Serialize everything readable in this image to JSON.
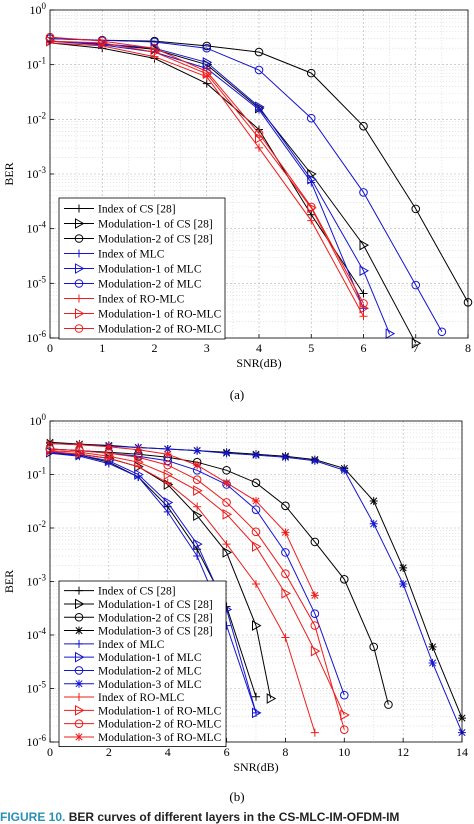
{
  "caption": {
    "prefix": "FIGURE 10.",
    "text": "BER curves of different layers in the CS-MLC-IM-OFDM-IM"
  },
  "chart_data": [
    {
      "type": "line",
      "panel_label": "(a)",
      "xlabel": "SNR(dB)",
      "ylabel": "BER",
      "xlim": [
        0,
        8
      ],
      "ylim": [
        1e-06,
        1
      ],
      "yscale": "log",
      "grid": true,
      "legend_position": "bottom-left",
      "x_ticks": [
        "0",
        "1",
        "2",
        "3",
        "4",
        "5",
        "6",
        "7",
        "8"
      ],
      "y_ticks": [
        {
          "base": "10",
          "exp": "0"
        },
        {
          "base": "10",
          "exp": "-1"
        },
        {
          "base": "10",
          "exp": "-2"
        },
        {
          "base": "10",
          "exp": "-3"
        },
        {
          "base": "10",
          "exp": "-4"
        },
        {
          "base": "10",
          "exp": "-5"
        },
        {
          "base": "10",
          "exp": "-6"
        }
      ],
      "series": [
        {
          "name": "Index of CS [28]",
          "color": "#000000",
          "marker": "plus",
          "x": [
            0,
            1,
            2,
            3,
            4,
            5,
            6
          ],
          "y": [
            0.25,
            0.2,
            0.13,
            0.045,
            0.0065,
            0.00018,
            6.5e-06
          ]
        },
        {
          "name": "Modulation-1 of CS [28]",
          "color": "#000000",
          "marker": "triangle-right",
          "x": [
            0,
            1,
            2,
            3,
            4,
            5,
            6,
            7
          ],
          "y": [
            0.27,
            0.24,
            0.19,
            0.1,
            0.016,
            0.001,
            5e-05,
            8e-07
          ]
        },
        {
          "name": "Modulation-2 of CS [28]",
          "color": "#000000",
          "marker": "circle",
          "x": [
            0,
            1,
            2,
            3,
            4,
            5,
            6,
            7,
            8
          ],
          "y": [
            0.3,
            0.28,
            0.27,
            0.22,
            0.17,
            0.07,
            0.0075,
            0.00023,
            4.5e-06
          ]
        },
        {
          "name": "Index of MLC",
          "color": "#1414d2",
          "marker": "plus",
          "x": [
            0,
            1,
            2,
            3,
            4,
            5,
            6
          ],
          "y": [
            0.27,
            0.23,
            0.17,
            0.085,
            0.015,
            0.0007,
            3.5e-06
          ]
        },
        {
          "name": "Modulation-1 of MLC",
          "color": "#1414d2",
          "marker": "triangle-right",
          "x": [
            0,
            1,
            2,
            3,
            4,
            5,
            6,
            6.5
          ],
          "y": [
            0.27,
            0.24,
            0.2,
            0.11,
            0.017,
            0.0008,
            1.7e-05,
            1.2e-06
          ]
        },
        {
          "name": "Modulation-2 of MLC",
          "color": "#1414d2",
          "marker": "circle",
          "x": [
            0,
            1,
            2,
            3,
            4,
            5,
            6,
            7,
            7.5
          ],
          "y": [
            0.3,
            0.28,
            0.26,
            0.2,
            0.08,
            0.0105,
            0.00046,
            9.3e-06,
            1.3e-06
          ]
        },
        {
          "name": "Index of RO-MLC",
          "color": "#ee1c1c",
          "marker": "plus",
          "x": [
            0,
            1,
            2,
            3,
            4,
            5,
            6
          ],
          "y": [
            0.25,
            0.22,
            0.14,
            0.06,
            0.003,
            0.00014,
            2.5e-06
          ]
        },
        {
          "name": "Modulation-1 of RO-MLC",
          "color": "#ee1c1c",
          "marker": "triangle-right",
          "x": [
            0,
            1,
            2,
            3,
            4,
            5,
            6
          ],
          "y": [
            0.27,
            0.25,
            0.17,
            0.068,
            0.0045,
            0.00024,
            3.5e-06
          ]
        },
        {
          "name": "Modulation-2 of RO-MLC",
          "color": "#ee1c1c",
          "marker": "circle",
          "x": [
            0,
            1,
            2,
            3,
            4,
            5,
            6
          ],
          "y": [
            0.32,
            0.27,
            0.2,
            0.075,
            0.0055,
            0.00025,
            4.3e-06
          ]
        }
      ]
    },
    {
      "type": "line",
      "panel_label": "(b)",
      "xlabel": "SNR(dB)",
      "ylabel": "BER",
      "xlim": [
        0,
        14
      ],
      "ylim": [
        1e-06,
        1
      ],
      "yscale": "log",
      "grid": true,
      "legend_position": "bottom-left",
      "x_ticks": [
        "0",
        "2",
        "4",
        "6",
        "8",
        "10",
        "12",
        "14"
      ],
      "y_ticks": [
        {
          "base": "10",
          "exp": "0"
        },
        {
          "base": "10",
          "exp": "-1"
        },
        {
          "base": "10",
          "exp": "-2"
        },
        {
          "base": "10",
          "exp": "-3"
        },
        {
          "base": "10",
          "exp": "-4"
        },
        {
          "base": "10",
          "exp": "-5"
        },
        {
          "base": "10",
          "exp": "-6"
        }
      ],
      "series": [
        {
          "name": "Index of CS [28]",
          "color": "#000000",
          "marker": "plus",
          "x": [
            0,
            1,
            2,
            3,
            4,
            5,
            6,
            7
          ],
          "y": [
            0.25,
            0.23,
            0.17,
            0.09,
            0.025,
            0.004,
            0.00034,
            7e-06
          ]
        },
        {
          "name": "Modulation-1 of CS [28]",
          "color": "#000000",
          "marker": "triangle-right",
          "x": [
            0,
            1,
            2,
            3,
            4,
            5,
            6,
            7,
            7.5
          ],
          "y": [
            0.26,
            0.24,
            0.2,
            0.14,
            0.065,
            0.017,
            0.0035,
            0.00015,
            6.5e-06
          ]
        },
        {
          "name": "Modulation-2 of CS [28]",
          "color": "#000000",
          "marker": "circle",
          "x": [
            0,
            1,
            2,
            3,
            4,
            5,
            6,
            7,
            8,
            9,
            10,
            11,
            11.5
          ],
          "y": [
            0.3,
            0.28,
            0.26,
            0.24,
            0.21,
            0.17,
            0.12,
            0.07,
            0.026,
            0.0055,
            0.0011,
            6e-05,
            5e-06
          ]
        },
        {
          "name": "Modulation-3 of CS [28]",
          "color": "#000000",
          "marker": "star",
          "x": [
            0,
            1,
            2,
            3,
            4,
            5,
            6,
            7,
            8,
            9,
            10,
            11,
            12,
            13,
            14
          ],
          "y": [
            0.4,
            0.37,
            0.35,
            0.32,
            0.3,
            0.28,
            0.26,
            0.24,
            0.22,
            0.19,
            0.13,
            0.032,
            0.0018,
            6e-05,
            2.8e-06
          ]
        },
        {
          "name": "Index of MLC",
          "color": "#1414d2",
          "marker": "plus",
          "x": [
            0,
            1,
            2,
            3,
            4,
            5,
            6,
            7
          ],
          "y": [
            0.25,
            0.22,
            0.16,
            0.09,
            0.02,
            0.003,
            0.00015,
            3.5e-06
          ]
        },
        {
          "name": "Modulation-1 of MLC",
          "color": "#1414d2",
          "marker": "triangle-right",
          "x": [
            0,
            1,
            2,
            3,
            4,
            5,
            6,
            7
          ],
          "y": [
            0.26,
            0.23,
            0.18,
            0.1,
            0.03,
            0.005,
            0.0003,
            3.5e-06
          ]
        },
        {
          "name": "Modulation-2 of MLC",
          "color": "#1414d2",
          "marker": "circle",
          "x": [
            0,
            1,
            2,
            3,
            4,
            5,
            6,
            7,
            8,
            9,
            10
          ],
          "y": [
            0.3,
            0.28,
            0.25,
            0.22,
            0.18,
            0.12,
            0.065,
            0.022,
            0.0035,
            0.00025,
            7.5e-06
          ]
        },
        {
          "name": "Modulation-3 of MLC",
          "color": "#1414d2",
          "marker": "star",
          "x": [
            0,
            1,
            2,
            3,
            4,
            5,
            6,
            7,
            8,
            9,
            10,
            11,
            12,
            13,
            14
          ],
          "y": [
            0.38,
            0.36,
            0.34,
            0.32,
            0.3,
            0.28,
            0.25,
            0.23,
            0.21,
            0.18,
            0.12,
            0.012,
            0.0009,
            3e-05,
            1.5e-06
          ]
        },
        {
          "name": "Index of RO-MLC",
          "color": "#ee1c1c",
          "marker": "plus",
          "x": [
            0,
            1,
            2,
            3,
            4,
            5,
            6,
            7,
            8,
            9
          ],
          "y": [
            0.27,
            0.24,
            0.2,
            0.14,
            0.07,
            0.025,
            0.005,
            0.0009,
            9e-05,
            1.5e-06
          ]
        },
        {
          "name": "Modulation-1 of RO-MLC",
          "color": "#ee1c1c",
          "marker": "triangle-right",
          "x": [
            0,
            1,
            2,
            3,
            4,
            5,
            6,
            7,
            8,
            9,
            10
          ],
          "y": [
            0.28,
            0.26,
            0.22,
            0.17,
            0.1,
            0.05,
            0.018,
            0.0045,
            0.0006,
            5e-05,
            3.2e-06
          ]
        },
        {
          "name": "Modulation-2 of RO-MLC",
          "color": "#ee1c1c",
          "marker": "circle",
          "x": [
            0,
            1,
            2,
            3,
            4,
            5,
            6,
            7,
            8,
            9,
            10
          ],
          "y": [
            0.3,
            0.28,
            0.25,
            0.21,
            0.15,
            0.08,
            0.03,
            0.0085,
            0.0014,
            0.00015,
            1.7e-06
          ]
        },
        {
          "name": "Modulation-3 of RO-MLC",
          "color": "#ee1c1c",
          "marker": "star",
          "x": [
            0,
            1,
            2,
            3,
            4,
            5,
            6,
            7,
            8,
            9
          ],
          "y": [
            0.38,
            0.36,
            0.33,
            0.29,
            0.24,
            0.15,
            0.07,
            0.032,
            0.0083,
            0.00055
          ]
        }
      ]
    }
  ]
}
